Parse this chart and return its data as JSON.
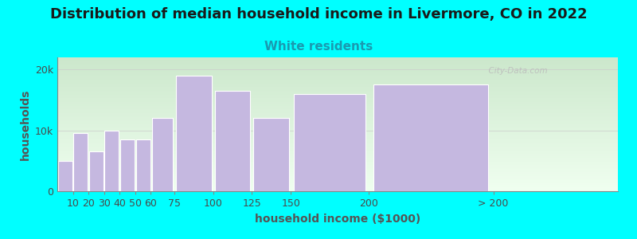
{
  "title": "Distribution of median household income in Livermore, CO in 2022",
  "subtitle": "White residents",
  "xlabel": "household income ($1000)",
  "ylabel": "households",
  "bg_color": "#00FFFF",
  "bar_color": "#c5b8e0",
  "bar_edge_color": "#ffffff",
  "grad_top": "#cce8cc",
  "grad_bottom": "#f0fff0",
  "watermark": "  City-Data.com",
  "bar_left_edges": [
    0,
    10,
    20,
    30,
    40,
    50,
    60,
    75,
    100,
    125,
    150,
    200
  ],
  "bar_widths": [
    10,
    10,
    10,
    10,
    10,
    10,
    15,
    25,
    25,
    25,
    50,
    80
  ],
  "values": [
    5000,
    9500,
    6500,
    10000,
    8500,
    8500,
    12000,
    19000,
    16500,
    12000,
    16000,
    17500
  ],
  "tick_positions": [
    10,
    20,
    30,
    40,
    50,
    60,
    75,
    100,
    125,
    150,
    200,
    280
  ],
  "tick_labels": [
    "10",
    "20",
    "30",
    "40",
    "50",
    "60",
    "75",
    "100",
    "125",
    "150",
    "200",
    "> 200"
  ],
  "xlim": [
    0,
    360
  ],
  "ylim": [
    0,
    22000
  ],
  "yticks": [
    0,
    10000,
    20000
  ],
  "ytick_labels": [
    "0",
    "10k",
    "20k"
  ],
  "title_fontsize": 13,
  "subtitle_fontsize": 11,
  "axis_label_fontsize": 10,
  "tick_fontsize": 9
}
